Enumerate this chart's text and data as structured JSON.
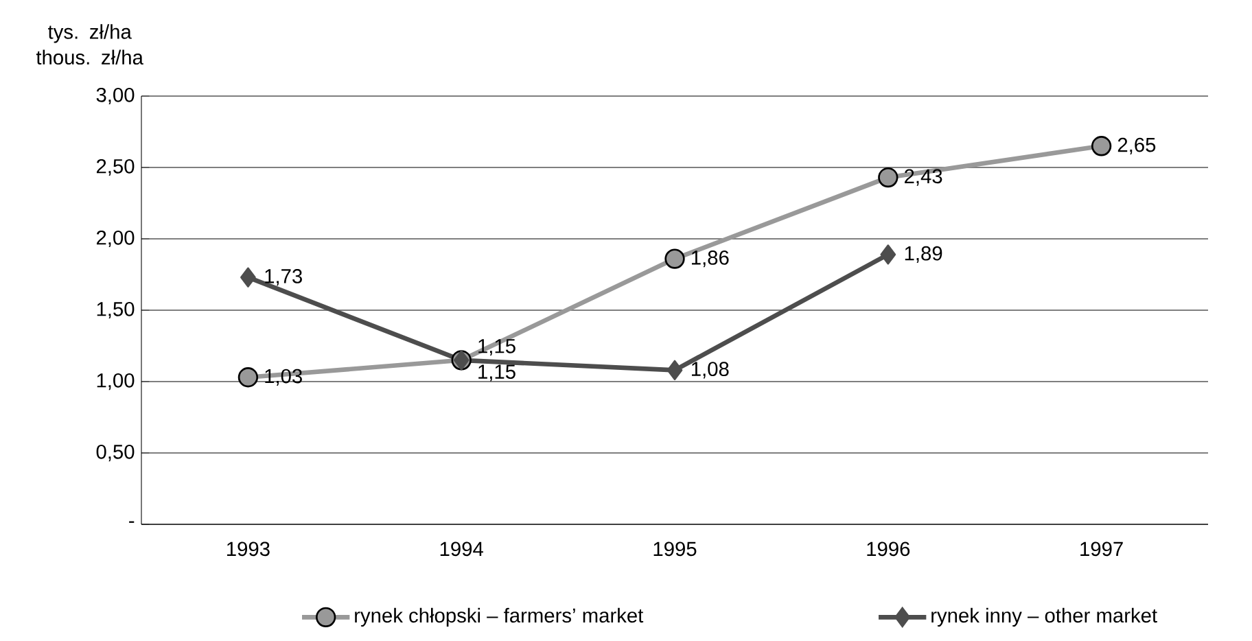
{
  "chart_data": {
    "type": "line",
    "ylabel": "tys. zł/ha thous. zł/ha",
    "categories": [
      "1993",
      "1994",
      "1995",
      "1996",
      "1997"
    ],
    "series": [
      {
        "name": "rynek chłopski – farmers’ market",
        "color": "#999999",
        "marker": "circle",
        "values": [
          1.03,
          1.15,
          1.86,
          2.43,
          2.65
        ],
        "value_labels": [
          "1,03",
          "1,15",
          "1,86",
          "2,43",
          "2,65"
        ]
      },
      {
        "name": "rynek inny – other market",
        "color": "#4d4d4d",
        "marker": "diamond",
        "values": [
          1.73,
          1.15,
          1.08,
          1.89,
          null
        ],
        "value_labels": [
          "1,73",
          "1,15",
          "1,08",
          "1,89",
          null
        ]
      }
    ],
    "ylim": [
      0,
      3
    ],
    "yticks": [
      {
        "value": 0,
        "label": "-"
      },
      {
        "value": 0.5,
        "label": "0,50"
      },
      {
        "value": 1,
        "label": "1,00"
      },
      {
        "value": 1.5,
        "label": "1,50"
      },
      {
        "value": 2,
        "label": "2,00"
      },
      {
        "value": 2.5,
        "label": "2,50"
      },
      {
        "value": 3,
        "label": "3,00"
      }
    ],
    "grid": "y",
    "legend": "bottom"
  }
}
